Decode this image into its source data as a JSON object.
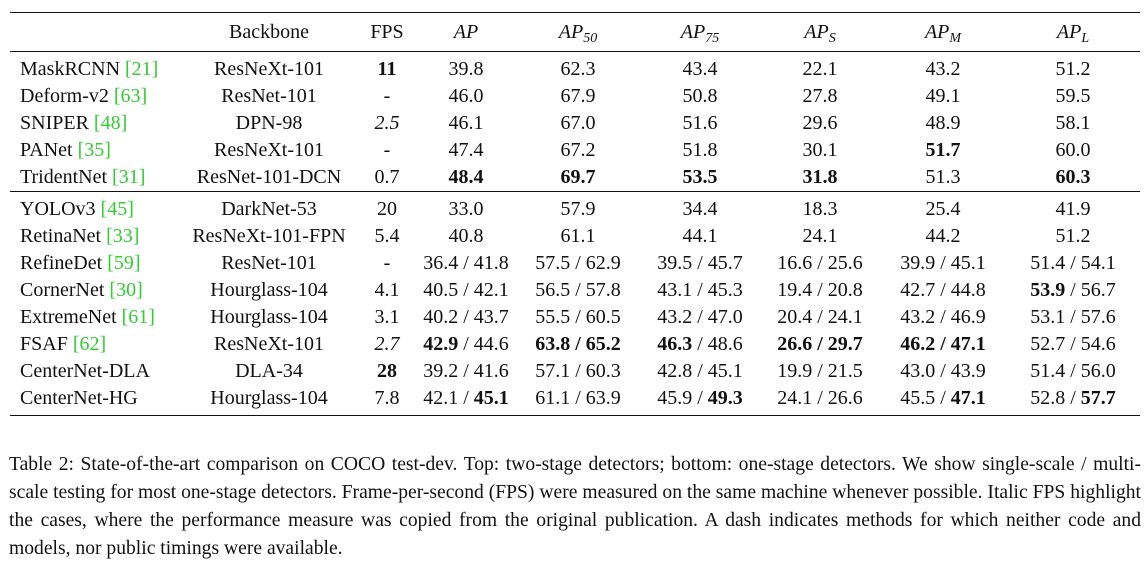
{
  "header": {
    "backbone": "Backbone",
    "fps": "FPS",
    "ap": {
      "base": "AP",
      "sub": ""
    },
    "ap50": {
      "base": "AP",
      "sub": "50"
    },
    "ap75": {
      "base": "AP",
      "sub": "75"
    },
    "aps": {
      "base": "AP",
      "sub": "S"
    },
    "apm": {
      "base": "AP",
      "sub": "M"
    },
    "apl": {
      "base": "AP",
      "sub": "L"
    }
  },
  "two_stage": [
    {
      "name": "MaskRCNN ",
      "ref": "[21]",
      "backbone": "ResNeXt-101",
      "fps": [
        {
          "t": "11",
          "b": true
        }
      ],
      "ap": [
        {
          "t": "39.8"
        }
      ],
      "ap50": [
        {
          "t": "62.3"
        }
      ],
      "ap75": [
        {
          "t": "43.4"
        }
      ],
      "aps": [
        {
          "t": "22.1"
        }
      ],
      "apm": [
        {
          "t": "43.2"
        }
      ],
      "apl": [
        {
          "t": "51.2"
        }
      ]
    },
    {
      "name": "Deform-v2 ",
      "ref": "[63]",
      "backbone": "ResNet-101",
      "fps": [
        {
          "t": "-"
        }
      ],
      "ap": [
        {
          "t": "46.0"
        }
      ],
      "ap50": [
        {
          "t": "67.9"
        }
      ],
      "ap75": [
        {
          "t": "50.8"
        }
      ],
      "aps": [
        {
          "t": "27.8"
        }
      ],
      "apm": [
        {
          "t": "49.1"
        }
      ],
      "apl": [
        {
          "t": "59.5"
        }
      ]
    },
    {
      "name": "SNIPER ",
      "ref": "[48]",
      "backbone": "DPN-98",
      "fps": [
        {
          "t": "2.5",
          "i": true
        }
      ],
      "ap": [
        {
          "t": "46.1"
        }
      ],
      "ap50": [
        {
          "t": "67.0"
        }
      ],
      "ap75": [
        {
          "t": "51.6"
        }
      ],
      "aps": [
        {
          "t": "29.6"
        }
      ],
      "apm": [
        {
          "t": "48.9"
        }
      ],
      "apl": [
        {
          "t": "58.1"
        }
      ]
    },
    {
      "name": "PANet ",
      "ref": "[35]",
      "backbone": "ResNeXt-101",
      "fps": [
        {
          "t": "-"
        }
      ],
      "ap": [
        {
          "t": "47.4"
        }
      ],
      "ap50": [
        {
          "t": "67.2"
        }
      ],
      "ap75": [
        {
          "t": "51.8"
        }
      ],
      "aps": [
        {
          "t": "30.1"
        }
      ],
      "apm": [
        {
          "t": "51.7",
          "b": true
        }
      ],
      "apl": [
        {
          "t": "60.0"
        }
      ]
    },
    {
      "name": "TridentNet ",
      "ref": "[31]",
      "backbone": "ResNet-101-DCN",
      "fps": [
        {
          "t": "0.7"
        }
      ],
      "ap": [
        {
          "t": "48.4",
          "b": true
        }
      ],
      "ap50": [
        {
          "t": "69.7",
          "b": true
        }
      ],
      "ap75": [
        {
          "t": "53.5",
          "b": true
        }
      ],
      "aps": [
        {
          "t": "31.8",
          "b": true
        }
      ],
      "apm": [
        {
          "t": "51.3"
        }
      ],
      "apl": [
        {
          "t": "60.3",
          "b": true
        }
      ]
    }
  ],
  "one_stage": [
    {
      "name": "YOLOv3 ",
      "ref": "[45]",
      "backbone": "DarkNet-53",
      "fps": [
        {
          "t": "20"
        }
      ],
      "ap": [
        {
          "t": "33.0"
        }
      ],
      "ap50": [
        {
          "t": "57.9"
        }
      ],
      "ap75": [
        {
          "t": "34.4"
        }
      ],
      "aps": [
        {
          "t": "18.3"
        }
      ],
      "apm": [
        {
          "t": "25.4"
        }
      ],
      "apl": [
        {
          "t": "41.9"
        }
      ]
    },
    {
      "name": "RetinaNet ",
      "ref": "[33]",
      "backbone": "ResNeXt-101-FPN",
      "fps": [
        {
          "t": "5.4"
        }
      ],
      "ap": [
        {
          "t": "40.8"
        }
      ],
      "ap50": [
        {
          "t": "61.1"
        }
      ],
      "ap75": [
        {
          "t": "44.1"
        }
      ],
      "aps": [
        {
          "t": "24.1"
        }
      ],
      "apm": [
        {
          "t": "44.2"
        }
      ],
      "apl": [
        {
          "t": "51.2"
        }
      ]
    },
    {
      "name": "RefineDet ",
      "ref": "[59]",
      "backbone": "ResNet-101",
      "fps": [
        {
          "t": "-"
        }
      ],
      "ap": [
        {
          "t": "36.4 / 41.8"
        }
      ],
      "ap50": [
        {
          "t": "57.5 / 62.9"
        }
      ],
      "ap75": [
        {
          "t": "39.5 / 45.7"
        }
      ],
      "aps": [
        {
          "t": "16.6 / 25.6"
        }
      ],
      "apm": [
        {
          "t": "39.9 / 45.1"
        }
      ],
      "apl": [
        {
          "t": "51.4 / 54.1"
        }
      ]
    },
    {
      "name": "CornerNet ",
      "ref": "[30]",
      "backbone": "Hourglass-104",
      "fps": [
        {
          "t": "4.1"
        }
      ],
      "ap": [
        {
          "t": "40.5 / 42.1"
        }
      ],
      "ap50": [
        {
          "t": "56.5 / 57.8"
        }
      ],
      "ap75": [
        {
          "t": "43.1 / 45.3"
        }
      ],
      "aps": [
        {
          "t": "19.4 / 20.8"
        }
      ],
      "apm": [
        {
          "t": "42.7 / 44.8"
        }
      ],
      "apl": [
        {
          "t": "53.9",
          "b": true
        },
        {
          "t": " / 56.7"
        }
      ]
    },
    {
      "name": "ExtremeNet ",
      "ref": "[61]",
      "backbone": "Hourglass-104",
      "fps": [
        {
          "t": "3.1"
        }
      ],
      "ap": [
        {
          "t": "40.2 / 43.7"
        }
      ],
      "ap50": [
        {
          "t": "55.5 / 60.5"
        }
      ],
      "ap75": [
        {
          "t": "43.2 / 47.0"
        }
      ],
      "aps": [
        {
          "t": "20.4 / 24.1"
        }
      ],
      "apm": [
        {
          "t": "43.2 / 46.9"
        }
      ],
      "apl": [
        {
          "t": "53.1 / 57.6"
        }
      ]
    },
    {
      "name": "FSAF ",
      "ref": "[62]",
      "backbone": "ResNeXt-101",
      "fps": [
        {
          "t": "2.7",
          "i": true
        }
      ],
      "ap": [
        {
          "t": "42.9",
          "b": true
        },
        {
          "t": " / 44.6"
        }
      ],
      "ap50": [
        {
          "t": "63.8 / 65.2",
          "b": true
        }
      ],
      "ap75": [
        {
          "t": "46.3",
          "b": true
        },
        {
          "t": " / 48.6"
        }
      ],
      "aps": [
        {
          "t": "26.6 / 29.7",
          "b": true
        }
      ],
      "apm": [
        {
          "t": "46.2 / 47.1",
          "b": true
        }
      ],
      "apl": [
        {
          "t": "52.7 / 54.6"
        }
      ]
    },
    {
      "name": "CenterNet-DLA",
      "ref": "",
      "backbone": "DLA-34",
      "fps": [
        {
          "t": "28",
          "b": true
        }
      ],
      "ap": [
        {
          "t": "39.2 / 41.6"
        }
      ],
      "ap50": [
        {
          "t": "57.1 / 60.3"
        }
      ],
      "ap75": [
        {
          "t": "42.8 / 45.1"
        }
      ],
      "aps": [
        {
          "t": "19.9 / 21.5"
        }
      ],
      "apm": [
        {
          "t": "43.0 / 43.9"
        }
      ],
      "apl": [
        {
          "t": "51.4 / 56.0"
        }
      ]
    },
    {
      "name": "CenterNet-HG",
      "ref": "",
      "backbone": "Hourglass-104",
      "fps": [
        {
          "t": "7.8"
        }
      ],
      "ap": [
        {
          "t": "42.1 / "
        },
        {
          "t": "45.1",
          "b": true
        }
      ],
      "ap50": [
        {
          "t": "61.1 / 63.9"
        }
      ],
      "ap75": [
        {
          "t": "45.9 / "
        },
        {
          "t": "49.3",
          "b": true
        }
      ],
      "aps": [
        {
          "t": "24.1 / 26.6"
        }
      ],
      "apm": [
        {
          "t": "45.5 / "
        },
        {
          "t": "47.1",
          "b": true
        }
      ],
      "apl": [
        {
          "t": "52.8 / "
        },
        {
          "t": "57.7",
          "b": true
        }
      ]
    }
  ],
  "caption": "Table 2: State-of-the-art comparison on COCO test-dev. Top: two-stage detectors; bottom: one-stage detectors. We show single-scale / multi-scale testing for most one-stage detectors. Frame-per-second (FPS) were measured on the same machine whenever possible. Italic FPS highlight the cases, where the performance measure was copied from the original publication. A dash indicates methods for which neither code and models, nor public timings were available.",
  "colors": {
    "ref": "#33cc33",
    "text": "#111111"
  }
}
